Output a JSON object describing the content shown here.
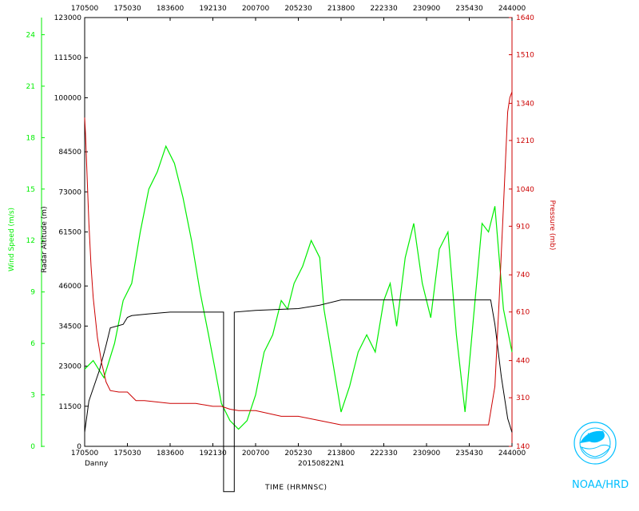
{
  "chart_data": {
    "type": "line",
    "storm_name": "Danny",
    "flight_id": "20150822N1",
    "xlabel": "TIME (HRMNSC)",
    "x_ticks": [
      "170500",
      "175030",
      "183600",
      "192130",
      "200700",
      "205230",
      "213800",
      "222330",
      "230900",
      "235430",
      "244000"
    ],
    "x_tick_values": [
      0,
      1,
      2,
      3,
      4,
      5,
      6,
      7,
      8,
      9,
      10
    ],
    "xlim": [
      0,
      10
    ],
    "wind_axis": {
      "label": "Wind Speed (m/s)",
      "ticks": [
        "0",
        "3",
        "6",
        "9",
        "12",
        "15",
        "18",
        "21",
        "24"
      ],
      "ylim": [
        0,
        25
      ],
      "color": "#00ee00"
    },
    "altitude_axis": {
      "label": "Radar Altitude (m)",
      "ticks": [
        "0",
        "11500",
        "23000",
        "34500",
        "46000",
        "61500",
        "73000",
        "84500",
        "100000",
        "111500",
        "123000"
      ],
      "ylim": [
        0,
        123000
      ],
      "color": "#000000"
    },
    "pressure_axis": {
      "label": "Pressure (mb)",
      "ticks": [
        "140",
        "310",
        "440",
        "610",
        "740",
        "910",
        "1040",
        "1210",
        "1340",
        "1510",
        "1640"
      ],
      "ylim": [
        140,
        1640
      ],
      "color": "#cc0000"
    },
    "series": [
      {
        "name": "Wind Speed",
        "axis": "wind",
        "color": "#00ee00",
        "x": [
          0,
          0.2,
          0.45,
          0.7,
          0.9,
          1.1,
          1.3,
          1.5,
          1.7,
          1.9,
          2.1,
          2.3,
          2.5,
          2.7,
          2.9,
          3.05,
          3.2,
          3.4,
          3.6,
          3.8,
          4.0,
          4.2,
          4.4,
          4.6,
          4.75,
          4.9,
          5.1,
          5.3,
          5.5,
          5.6,
          5.8,
          6.0,
          6.2,
          6.4,
          6.6,
          6.8,
          7.0,
          7.15,
          7.3,
          7.5,
          7.7,
          7.9,
          8.1,
          8.3,
          8.5,
          8.7,
          8.9,
          9.1,
          9.3,
          9.45,
          9.6,
          9.8,
          10.0
        ],
        "values": [
          4.5,
          5.0,
          4.0,
          6.0,
          8.5,
          9.5,
          12.5,
          15.0,
          16.0,
          17.5,
          16.5,
          14.5,
          12.0,
          9.0,
          6.5,
          4.5,
          2.5,
          1.5,
          1.0,
          1.5,
          3.0,
          5.5,
          6.5,
          8.5,
          8.0,
          9.5,
          10.5,
          12.0,
          11.0,
          8.0,
          5.0,
          2.0,
          3.5,
          5.5,
          6.5,
          5.5,
          8.5,
          9.5,
          7.0,
          11.0,
          13.0,
          9.5,
          7.5,
          11.5,
          12.5,
          6.5,
          2.0,
          7.5,
          13.0,
          12.5,
          14.0,
          8.0,
          5.5
        ]
      },
      {
        "name": "Radar Altitude",
        "axis": "altitude",
        "color": "#000000",
        "x": [
          0,
          0.1,
          0.35,
          0.5,
          0.6,
          0.9,
          1.0,
          1.1,
          1.5,
          2.0,
          2.5,
          3.0,
          3.25,
          3.25,
          3.5,
          3.5,
          4.0,
          5.0,
          5.5,
          6.0,
          6.5,
          7.0,
          8.0,
          9.0,
          9.5,
          9.6,
          9.75,
          9.9,
          10.0
        ],
        "values": [
          4000,
          13000,
          22000,
          29000,
          34000,
          35000,
          37000,
          37500,
          38000,
          38500,
          38500,
          38500,
          38500,
          -13000,
          -13000,
          38500,
          39000,
          39500,
          40500,
          42000,
          42000,
          42000,
          42000,
          42000,
          42000,
          35000,
          20000,
          8000,
          4000
        ]
      },
      {
        "name": "Pressure",
        "axis": "pressure",
        "color": "#cc0000",
        "x": [
          0,
          0.02,
          0.05,
          0.1,
          0.15,
          0.2,
          0.3,
          0.4,
          0.5,
          0.6,
          0.8,
          1.0,
          1.2,
          1.4,
          2.0,
          2.6,
          3.0,
          3.2,
          3.4,
          3.6,
          4.0,
          4.6,
          5.0,
          5.5,
          6.0,
          7.0,
          8.0,
          9.0,
          9.45,
          9.6,
          9.7,
          9.8,
          9.9,
          9.95,
          10.0
        ],
        "values": [
          1290,
          1230,
          1110,
          920,
          770,
          660,
          520,
          430,
          365,
          335,
          330,
          330,
          300,
          300,
          290,
          290,
          280,
          280,
          270,
          265,
          265,
          245,
          245,
          230,
          215,
          215,
          215,
          215,
          215,
          350,
          650,
          980,
          1310,
          1360,
          1380
        ]
      }
    ]
  },
  "branding": {
    "logo_text": "NOAA",
    "org_label": "NOAA/HRD"
  }
}
